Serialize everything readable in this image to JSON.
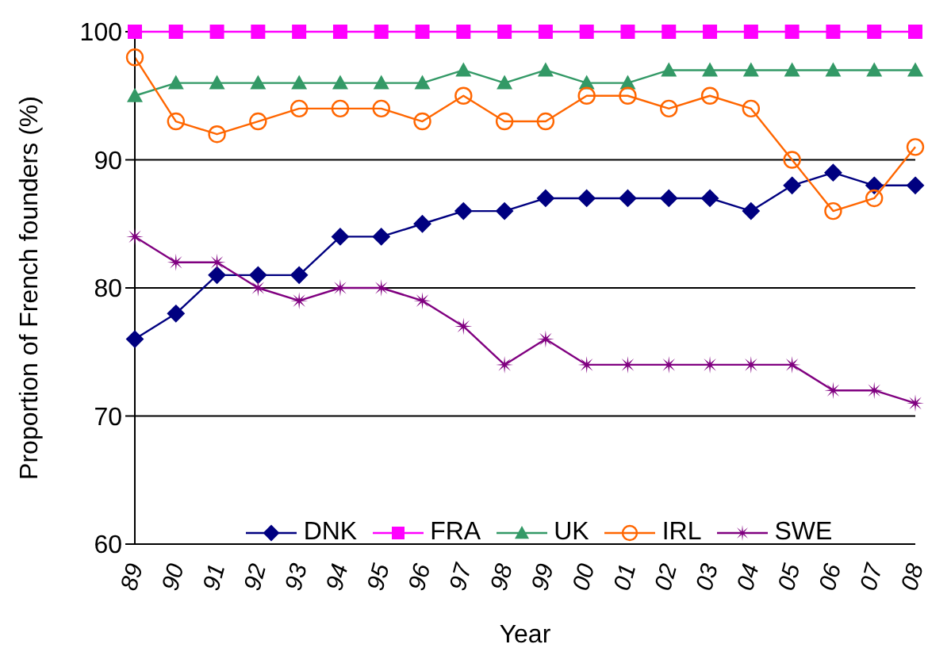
{
  "chart_data": {
    "type": "line",
    "xlabel": "Year",
    "ylabel": "Proportion of French founders (%)",
    "categories": [
      "89",
      "90",
      "91",
      "92",
      "93",
      "94",
      "95",
      "96",
      "97",
      "98",
      "99",
      "00",
      "01",
      "02",
      "03",
      "04",
      "05",
      "06",
      "07",
      "08"
    ],
    "ylim": [
      60,
      100
    ],
    "yticks": [
      60,
      70,
      80,
      90,
      100
    ],
    "grid": "y",
    "legend": "bottom",
    "series": [
      {
        "name": "DNK",
        "color": "#000080",
        "marker": "diamond",
        "values": [
          76,
          78,
          81,
          81,
          81,
          84,
          84,
          85,
          86,
          86,
          87,
          87,
          87,
          87,
          87,
          86,
          88,
          89,
          88,
          88
        ]
      },
      {
        "name": "FRA",
        "color": "#ff00ff",
        "marker": "square",
        "values": [
          100,
          100,
          100,
          100,
          100,
          100,
          100,
          100,
          100,
          100,
          100,
          100,
          100,
          100,
          100,
          100,
          100,
          100,
          100,
          100
        ]
      },
      {
        "name": "UK",
        "color": "#339966",
        "marker": "triangle",
        "values": [
          95,
          96,
          96,
          96,
          96,
          96,
          96,
          96,
          97,
          96,
          97,
          96,
          96,
          97,
          97,
          97,
          97,
          97,
          97,
          97
        ]
      },
      {
        "name": "IRL",
        "color": "#ff6600",
        "marker": "circle",
        "values": [
          98,
          93,
          92,
          93,
          94,
          94,
          94,
          93,
          95,
          93,
          93,
          95,
          95,
          94,
          95,
          94,
          90,
          86,
          87,
          91
        ]
      },
      {
        "name": "SWE",
        "color": "#800080",
        "marker": "star",
        "values": [
          84,
          82,
          82,
          80,
          79,
          80,
          80,
          79,
          77,
          74,
          76,
          74,
          74,
          74,
          74,
          74,
          74,
          72,
          72,
          71
        ]
      }
    ]
  }
}
